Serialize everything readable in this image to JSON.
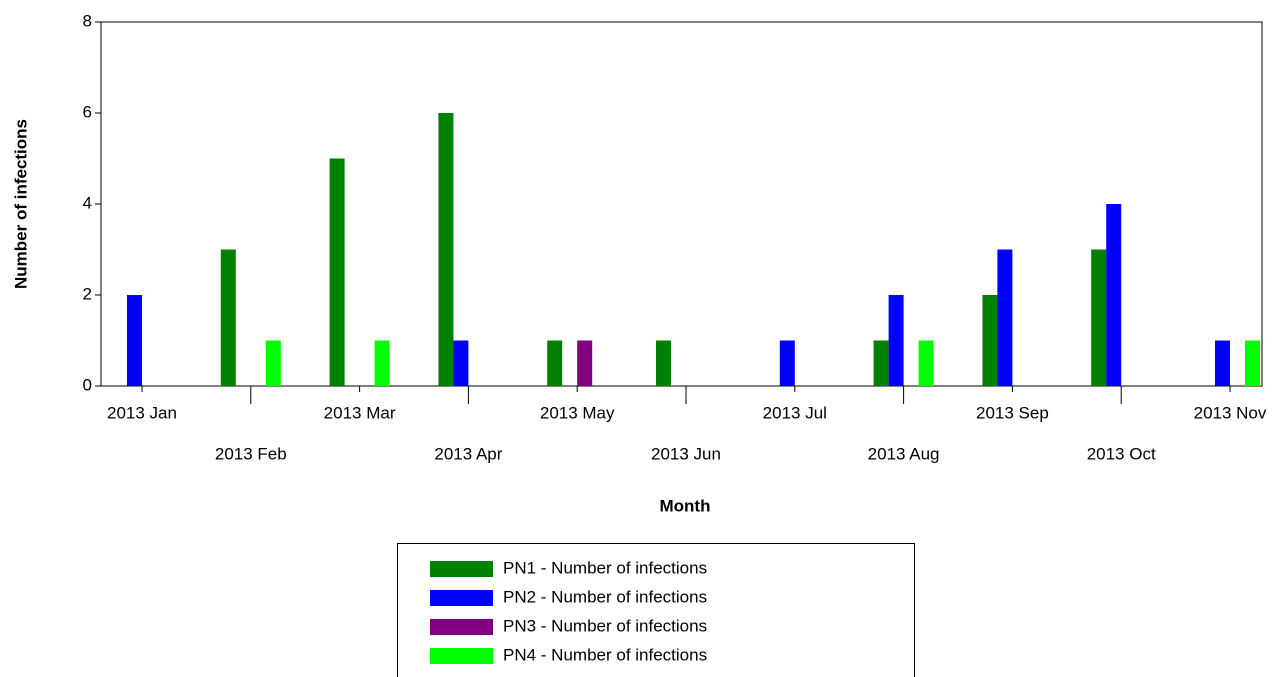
{
  "chart_data": {
    "type": "bar",
    "x_label": "Month",
    "y_label": "Number of infections",
    "categories": [
      "2013 Jan",
      "2013 Feb",
      "2013 Mar",
      "2013 Apr",
      "2013 May",
      "2013 Jun",
      "2013 Jul",
      "2013 Aug",
      "2013 Sep",
      "2013 Oct",
      "2013 Nov"
    ],
    "series": [
      {
        "name": "PN1 - Number of infections",
        "color": "#008000",
        "values": [
          0,
          3,
          5,
          6,
          1,
          1,
          0,
          1,
          2,
          3,
          0
        ]
      },
      {
        "name": "PN2 - Number of infections",
        "color": "#0000ff",
        "values": [
          2,
          0,
          0,
          1,
          0,
          0,
          1,
          2,
          3,
          4,
          1
        ]
      },
      {
        "name": "PN3 - Number of infections",
        "color": "#800080",
        "values": [
          0,
          0,
          0,
          0,
          1,
          0,
          0,
          0,
          0,
          0,
          0
        ]
      },
      {
        "name": "PN4 - Number of infections",
        "color": "#00ff00",
        "values": [
          0,
          1,
          1,
          0,
          0,
          0,
          0,
          1,
          0,
          0,
          1
        ]
      }
    ],
    "ylim": [
      0,
      8
    ],
    "yticks": [
      0,
      2,
      4,
      6,
      8
    ],
    "grid": false,
    "legend": "bottom"
  }
}
